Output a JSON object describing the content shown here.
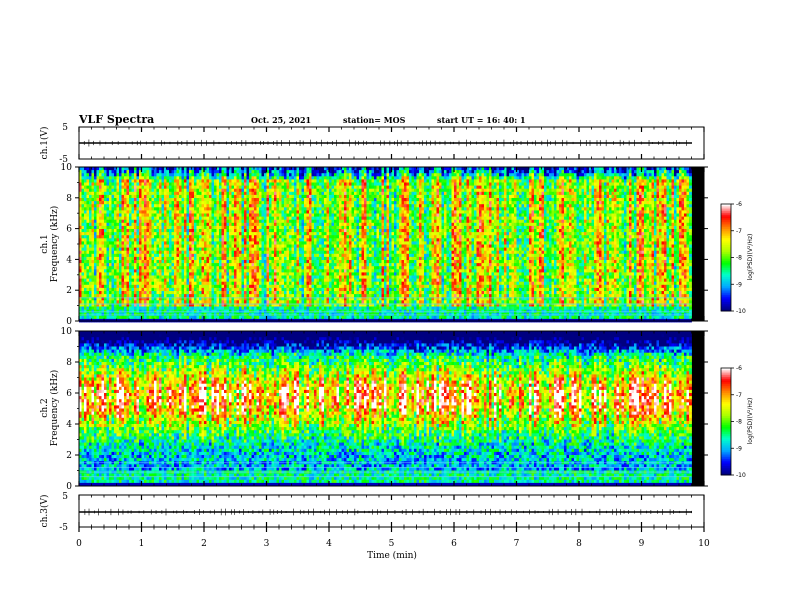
{
  "header": {
    "title": "VLF Spectra",
    "date": "Oct. 25, 2021",
    "station": "station= MOS",
    "start": "start  UT =   16: 40: 1"
  },
  "chart_data": [
    {
      "id": "ch1-waveform",
      "type": "line",
      "ylabel": "ch.1(V)",
      "ylim": [
        -5,
        5
      ],
      "yticks": [
        "5",
        "-5"
      ],
      "xlim": [
        0,
        10
      ],
      "series": [
        {
          "x": [
            0,
            9.8
          ],
          "y": [
            0,
            0
          ]
        }
      ]
    },
    {
      "id": "ch1-spectrogram",
      "type": "heatmap",
      "ylabel": "ch.1\nFrequency (kHz)",
      "ylim": [
        0,
        10
      ],
      "yticks": [
        "0",
        "2",
        "4",
        "6",
        "8",
        "10"
      ],
      "xlim": [
        0,
        10
      ],
      "colorbar": {
        "label": "log(PSD)(V²/Hz)",
        "range": [
          -10,
          -6
        ],
        "ticks": [
          "-6",
          "-7",
          "-8",
          "-9",
          "-10"
        ]
      }
    },
    {
      "id": "ch2-spectrogram",
      "type": "heatmap",
      "ylabel": "ch.2\nFrequency (kHz)",
      "ylim": [
        0,
        10
      ],
      "yticks": [
        "0",
        "2",
        "4",
        "6",
        "8",
        "10"
      ],
      "xlim": [
        0,
        10
      ],
      "colorbar": {
        "label": "log(PSD)(V²/Hz)",
        "range": [
          -10,
          -6
        ],
        "ticks": [
          "-6",
          "-7",
          "-8",
          "-9",
          "-10"
        ]
      }
    },
    {
      "id": "ch3-waveform",
      "type": "line",
      "ylabel": "ch.3(V)",
      "ylim": [
        -5,
        5
      ],
      "yticks": [
        "5",
        "-5"
      ],
      "xlim": [
        0,
        10
      ],
      "series": [
        {
          "x": [
            0,
            9.8
          ],
          "y": [
            0,
            0
          ]
        }
      ]
    }
  ],
  "xaxis": {
    "label": "Time  (min)",
    "ticks": [
      "0",
      "1",
      "2",
      "3",
      "4",
      "5",
      "6",
      "7",
      "8",
      "9",
      "10"
    ]
  },
  "colors": {
    "colormap": [
      "#000080",
      "#0000ff",
      "#00aaff",
      "#00ffcc",
      "#00ff00",
      "#aaff00",
      "#ffff00",
      "#ff8800",
      "#ff0000",
      "#ffffff"
    ]
  }
}
